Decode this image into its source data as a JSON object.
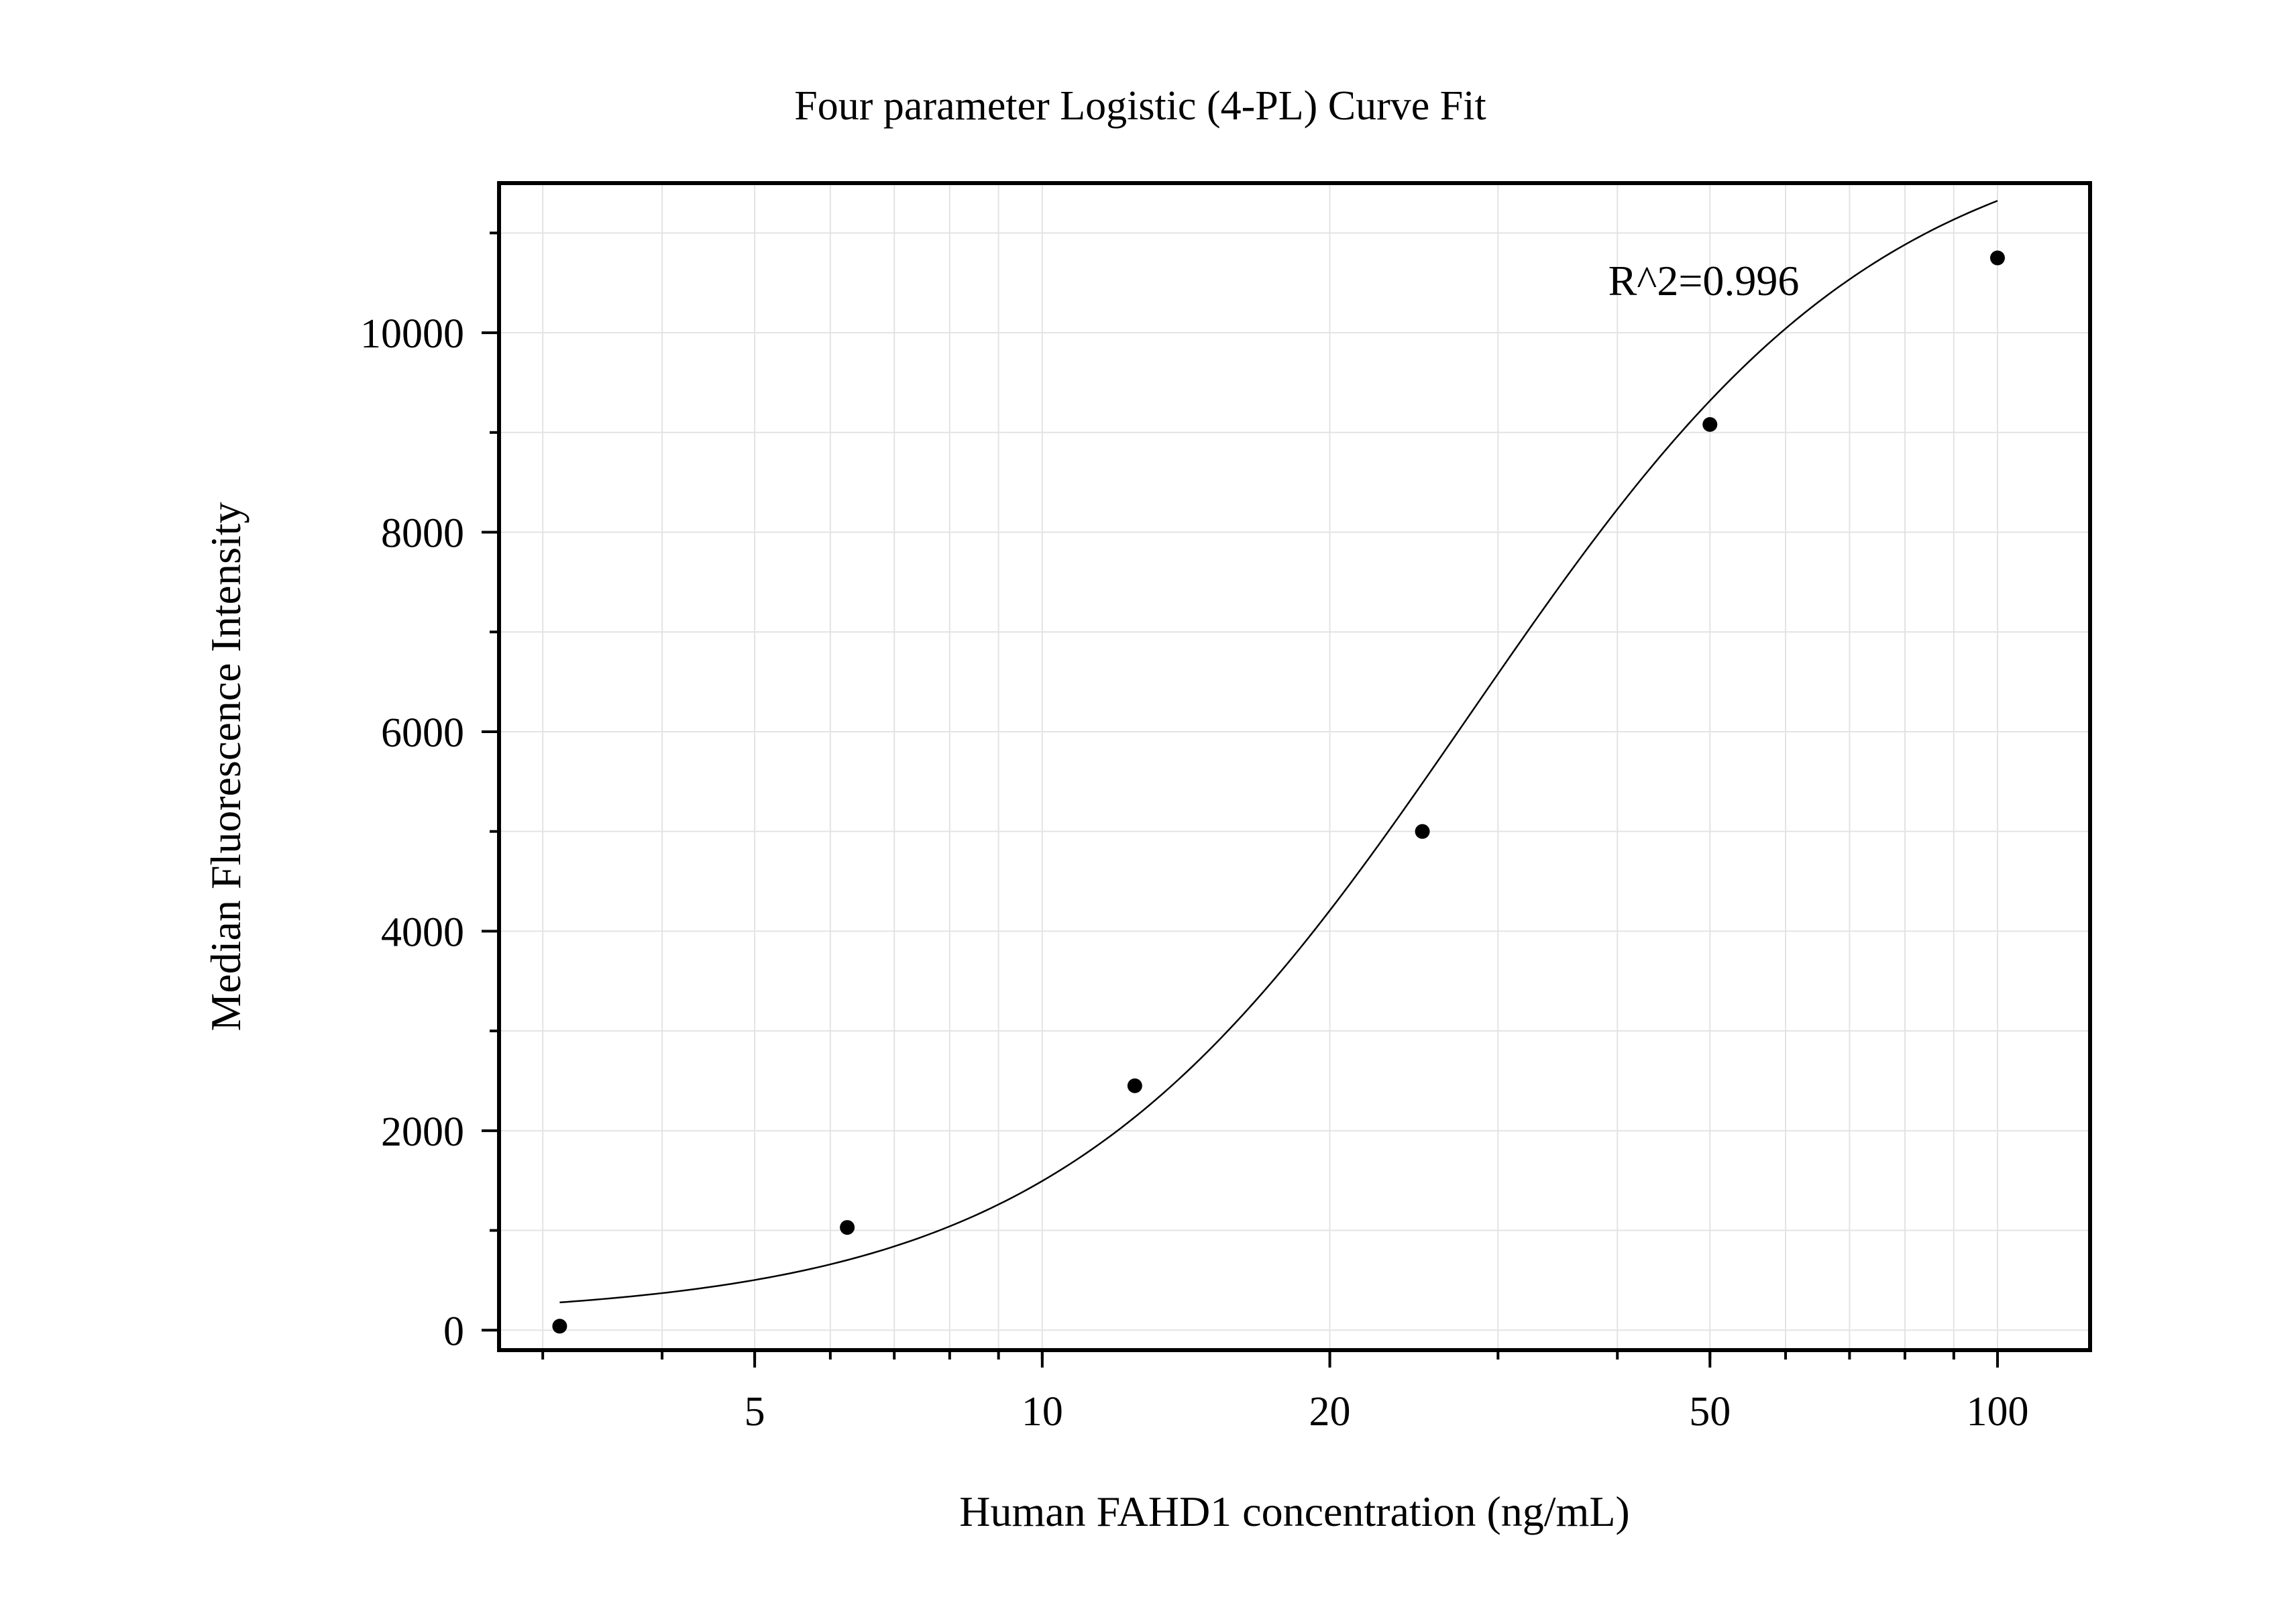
{
  "chart_data": {
    "type": "scatter",
    "title": "Four parameter Logistic (4-PL) Curve Fit",
    "xlabel": "Human FAHD1 concentration (ng/mL)",
    "ylabel": "Median Fluorescence Intensity",
    "x_scale": "log",
    "xlim": [
      2.7,
      125
    ],
    "ylim": [
      -200,
      11500
    ],
    "x_ticks": [
      5,
      10,
      20,
      50,
      100
    ],
    "x_tick_labels": [
      "5",
      "10",
      "20",
      "50",
      "100"
    ],
    "y_ticks": [
      0,
      2000,
      4000,
      6000,
      8000,
      10000
    ],
    "y_tick_labels": [
      "0",
      "2000",
      "4000",
      "6000",
      "8000",
      "10000"
    ],
    "grid": true,
    "annotation": "R^2=0.996",
    "series": [
      {
        "kind": "points",
        "x": [
          3.125,
          6.25,
          12.5,
          25,
          50,
          100
        ],
        "y": [
          40,
          1030,
          2450,
          5000,
          9080,
          10750
        ]
      },
      {
        "kind": "fit",
        "fit_model": "4PL",
        "params": {
          "A": 130,
          "D": 12200,
          "C": 28,
          "B": 2.0
        },
        "x_range": [
          3.125,
          100
        ]
      }
    ]
  }
}
